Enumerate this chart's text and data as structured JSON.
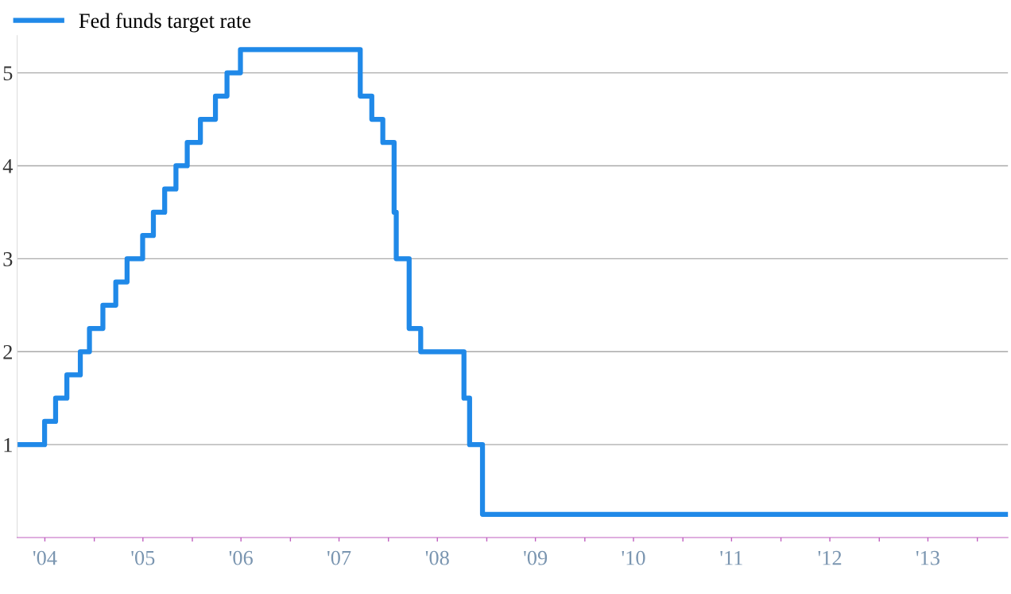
{
  "chart_data": {
    "type": "step",
    "legend": "top left",
    "grid": "y",
    "line_style": "solid",
    "marker": "none",
    "x": [
      "2004-03-20",
      "2004-06-30",
      "2004-08-10",
      "2004-09-21",
      "2004-11-10",
      "2004-12-14",
      "2005-02-02",
      "2005-03-22",
      "2005-05-03",
      "2005-06-30",
      "2005-08-09",
      "2005-09-20",
      "2005-11-01",
      "2005-12-13",
      "2006-01-31",
      "2006-03-28",
      "2006-05-10",
      "2006-06-29",
      "2007-09-18",
      "2007-10-31",
      "2007-12-11",
      "2008-01-22",
      "2008-01-30",
      "2008-03-18",
      "2008-04-30",
      "2008-10-08",
      "2008-10-29",
      "2008-12-16",
      "2014-04-25"
    ],
    "series": [
      {
        "name": "Fed funds target rate",
        "color": "#2089e8",
        "values": [
          1.0,
          1.25,
          1.5,
          1.75,
          2.0,
          2.25,
          2.5,
          2.75,
          3.0,
          3.25,
          3.5,
          3.75,
          4.0,
          4.25,
          4.5,
          4.75,
          5.0,
          5.25,
          4.75,
          4.5,
          4.25,
          3.5,
          3.0,
          2.25,
          2.0,
          1.5,
          1.0,
          0.25,
          0.25
        ]
      }
    ],
    "xlim": [
      "2004-03-20",
      "2014-04-25"
    ],
    "xticks": [
      {
        "value": "2004-07-01",
        "label": "'04"
      },
      {
        "value": "2005-01-01",
        "label": null
      },
      {
        "value": "2005-07-01",
        "label": "'05"
      },
      {
        "value": "2006-01-01",
        "label": null
      },
      {
        "value": "2006-07-01",
        "label": "'06"
      },
      {
        "value": "2007-01-01",
        "label": null
      },
      {
        "value": "2007-07-01",
        "label": "'07"
      },
      {
        "value": "2008-01-01",
        "label": null
      },
      {
        "value": "2008-07-01",
        "label": "'08"
      },
      {
        "value": "2009-01-01",
        "label": null
      },
      {
        "value": "2009-07-01",
        "label": "'09"
      },
      {
        "value": "2010-01-01",
        "label": null
      },
      {
        "value": "2010-07-01",
        "label": "'10"
      },
      {
        "value": "2011-01-01",
        "label": null
      },
      {
        "value": "2011-07-01",
        "label": "'11"
      },
      {
        "value": "2012-01-01",
        "label": null
      },
      {
        "value": "2012-07-01",
        "label": "'12"
      },
      {
        "value": "2013-01-01",
        "label": null
      },
      {
        "value": "2013-07-01",
        "label": "'13"
      },
      {
        "value": "2014-01-01",
        "label": null
      }
    ],
    "ylim": [
      0,
      5.4
    ],
    "yticks": [
      1,
      2,
      3,
      4,
      5
    ]
  }
}
